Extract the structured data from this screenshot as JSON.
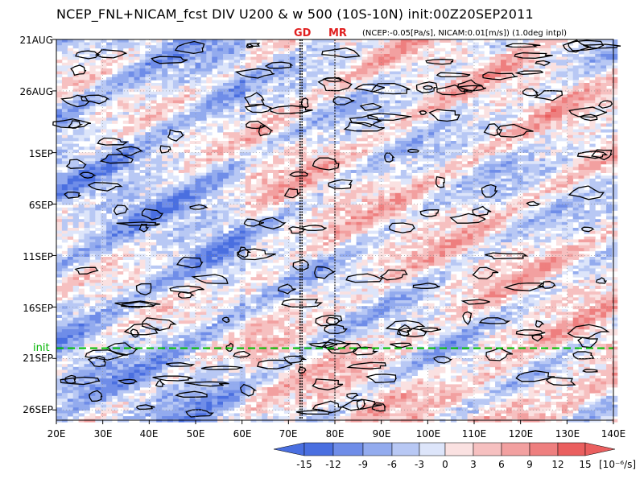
{
  "title": "NCEP_FNL+NICAM_fcst DIV U200 & w 500 (10S-10N) init:00Z20SEP2011",
  "subtitle": "(NCEP:-0.05[Pa/s], NICAM:0.01[m/s]) (1.0deg intpl)",
  "markers": [
    {
      "label": "GD",
      "lon": 72.7
    },
    {
      "label": "MR",
      "lon": 80
    }
  ],
  "init_line": {
    "label": "init",
    "date": "20SEP2011"
  },
  "colors": {
    "negative_strong": "#4169e1",
    "negative_weak": "#c8d4f4",
    "neutral": "#ffffff",
    "positive_weak": "#f9c8c8",
    "positive_strong": "#ea5858",
    "init_line": "#00c000",
    "marker_line": "#000000"
  },
  "chart_data": {
    "type": "heatmap",
    "variable": "DIV U200 & w 500",
    "x_axis": {
      "range": [
        20,
        140
      ],
      "ticks": [
        "20E",
        "30E",
        "40E",
        "50E",
        "60E",
        "70E",
        "80E",
        "90E",
        "100E",
        "110E",
        "120E",
        "130E",
        "140E"
      ]
    },
    "y_axis": {
      "range": [
        "21AUG",
        "27SEP"
      ],
      "direction": "top-to-bottom",
      "ticks": [
        "21AUG",
        "26AUG",
        "1SEP",
        "6SEP",
        "11SEP",
        "16SEP",
        "21SEP",
        "26SEP"
      ]
    },
    "colorbar": {
      "levels": [
        "-15",
        "-12",
        "-9",
        "-6",
        "-3",
        "0",
        "3",
        "6",
        "9",
        "12",
        "15"
      ],
      "unit": "[10⁻⁶/s]",
      "colors": [
        "#4a6fe0",
        "#6f8de8",
        "#93abee",
        "#b8c8f4",
        "#dde5fa",
        "#fae1e1",
        "#f6c0c0",
        "#f2a0a0",
        "#ee7f7f",
        "#ea5f5f"
      ]
    },
    "grid": true
  }
}
